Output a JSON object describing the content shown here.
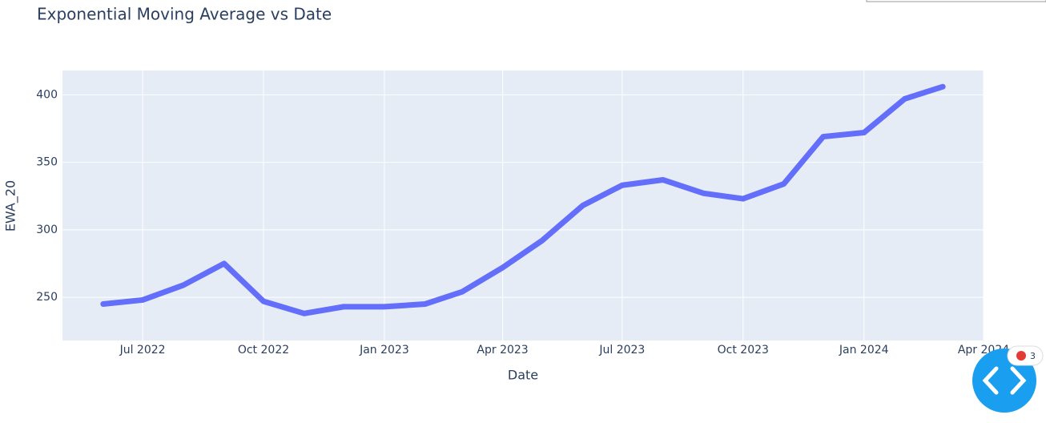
{
  "chart_data": {
    "type": "line",
    "title": "Exponential Moving Average vs Date",
    "x_label": "Date",
    "y_label": "EWA_20",
    "x": [
      "2022-06",
      "2022-07",
      "2022-08",
      "2022-09",
      "2022-10",
      "2022-11",
      "2022-12",
      "2023-01",
      "2023-02",
      "2023-03",
      "2023-04",
      "2023-05",
      "2023-06",
      "2023-07",
      "2023-08",
      "2023-09",
      "2023-10",
      "2023-11",
      "2023-12",
      "2024-01",
      "2024-02",
      "2024-03"
    ],
    "series": [
      {
        "name": "EWA_20",
        "color": "#636efa",
        "values": [
          245,
          248,
          259,
          275,
          247,
          238,
          243,
          243,
          245,
          254,
          272,
          292,
          318,
          333,
          337,
          327,
          323,
          334,
          369,
          372,
          397,
          406
        ]
      }
    ],
    "xlim": [
      "2022-05",
      "2024-04"
    ],
    "xticks": [
      {
        "value": "2022-07",
        "label": "Jul 2022"
      },
      {
        "value": "2022-10",
        "label": "Oct 2022"
      },
      {
        "value": "2023-01",
        "label": "Jan 2023"
      },
      {
        "value": "2023-04",
        "label": "Apr 2023"
      },
      {
        "value": "2023-07",
        "label": "Jul 2023"
      },
      {
        "value": "2023-10",
        "label": "Oct 2023"
      },
      {
        "value": "2024-01",
        "label": "Jan 2024"
      },
      {
        "value": "2024-04",
        "label": "Apr 2024"
      }
    ],
    "ylim": [
      218,
      418
    ],
    "yticks": [
      250,
      300,
      350,
      400
    ],
    "grid": true
  },
  "badge": "3"
}
